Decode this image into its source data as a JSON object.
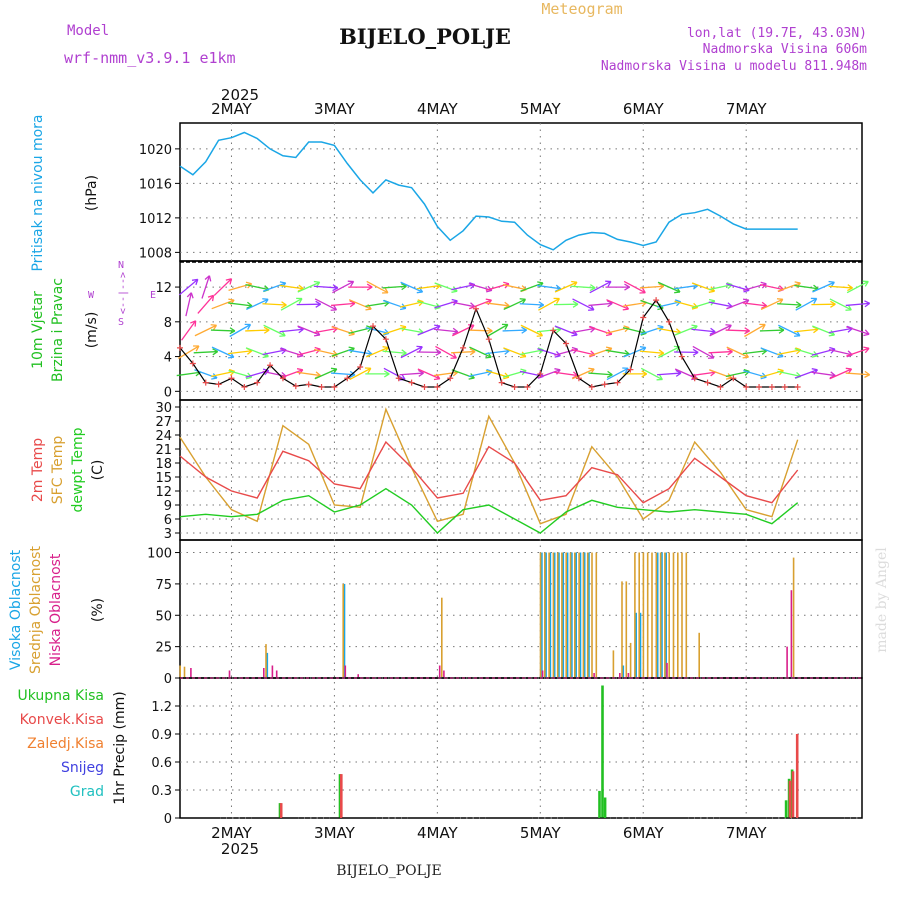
{
  "header": {
    "app_title": "Meteogram",
    "station": "BIJELO_POLJE",
    "model_label": "Model",
    "model_name": "wrf-nmm_v3.9.1  e1km",
    "lonlat": "lon,lat (19.7E, 43.03N)",
    "altitude": "Nadmorska Visina 606m",
    "model_altitude": "Nadmorska Visina u modelu 811.948m",
    "footer_station": "BIJELO_POLJE",
    "credit": "made by Angel"
  },
  "colors": {
    "pressure": "#1aa6e6",
    "wind_title": "#22c022",
    "temp2m": "#e84a4a",
    "sfc_temp": "#d8a030",
    "dewpt": "#22cc22",
    "cloud_high": "#1aa6e6",
    "cloud_mid": "#d8a030",
    "cloud_low": "#d81f8a",
    "wind_dir": "#b040d0",
    "precip_total": "#22c022",
    "precip_conv": "#e84a4a",
    "precip_frozen": "#f08030",
    "snow": "#4040e0",
    "graupel": "#20c0c0",
    "header_purple": "#b040d0",
    "header_gold": "#e8b860"
  },
  "chart_data": [
    {
      "type": "line",
      "panel": "pressure",
      "ylabel_main": "Pritisak na nivou mora",
      "ylabel_unit": "(hPa)",
      "ylim": [
        1007,
        1023
      ],
      "yticks": [
        "1008",
        "1012",
        "1016",
        "1020"
      ],
      "x_top_year": "2025",
      "x_days": [
        "2MAY",
        "3MAY",
        "4MAY",
        "5MAY",
        "6MAY",
        "7MAY"
      ],
      "x_bottom_year": "2025",
      "x_hours": [
        0,
        3,
        6,
        9,
        12,
        15,
        18,
        21,
        24,
        27,
        30,
        33,
        36,
        39,
        42,
        45,
        48,
        51,
        54,
        57,
        60,
        63,
        66,
        69,
        72,
        75,
        78,
        81,
        84,
        87,
        90,
        93,
        96,
        99,
        102,
        105,
        108,
        111,
        114,
        117,
        120,
        123,
        126,
        129,
        132,
        135,
        138,
        141,
        144
      ],
      "values": [
        1018.0,
        1017.0,
        1018.5,
        1021.0,
        1021.3,
        1021.9,
        1021.2,
        1020.0,
        1019.2,
        1019.0,
        1020.8,
        1020.8,
        1020.4,
        1018.3,
        1016.4,
        1014.9,
        1016.4,
        1015.8,
        1015.5,
        1013.6,
        1011.0,
        1009.4,
        1010.5,
        1012.2,
        1012.1,
        1011.6,
        1011.5,
        1010.0,
        1008.9,
        1008.3,
        1009.4,
        1010.0,
        1010.3,
        1010.2,
        1009.5,
        1009.2,
        1008.8,
        1009.2,
        1011.5,
        1012.4,
        1012.6,
        1013.0,
        1012.2,
        1011.3,
        1010.7,
        1010.7,
        1010.7,
        1010.7,
        1010.7
      ],
      "series": [
        {
          "name": "Pritisak na nivou mora",
          "color": "#1aa6e6"
        }
      ]
    },
    {
      "type": "line",
      "panel": "wind",
      "ylabel_main": "10m Vjetar",
      "ylabel_sub": "Brzina i Pravac",
      "ylabel_unit": "(m/s)",
      "ylim": [
        -1,
        15
      ],
      "yticks": [
        "0",
        "4",
        "8",
        "12"
      ],
      "direction_legend": {
        "w": "W",
        "e": "E",
        "s": "S",
        "n": "N",
        "arrow": "<--|-->"
      },
      "x_hours": [
        0,
        3,
        6,
        9,
        12,
        15,
        18,
        21,
        24,
        27,
        30,
        33,
        36,
        39,
        42,
        45,
        48,
        51,
        54,
        57,
        60,
        63,
        66,
        69,
        72,
        75,
        78,
        81,
        84,
        87,
        90,
        93,
        96,
        99,
        102,
        105,
        108,
        111,
        114,
        117,
        120,
        123,
        126,
        129,
        132,
        135,
        138,
        141,
        144
      ],
      "values": [
        5.0,
        3.2,
        1.0,
        0.8,
        1.5,
        0.5,
        1.0,
        3.0,
        1.5,
        0.6,
        0.8,
        0.5,
        0.5,
        1.5,
        2.8,
        7.5,
        6.0,
        1.5,
        1.0,
        0.5,
        0.5,
        1.5,
        5.0,
        9.5,
        6.0,
        1.0,
        0.5,
        0.5,
        2.0,
        7.0,
        5.5,
        1.5,
        0.5,
        0.8,
        1.0,
        2.5,
        8.5,
        10.5,
        8.0,
        4.0,
        1.5,
        1.0,
        0.5,
        1.5,
        0.5,
        0.5,
        0.5,
        0.5,
        0.5
      ],
      "series": [
        {
          "name": "10m Vjetar Brzina i Pravac",
          "color": "#000000"
        }
      ]
    },
    {
      "type": "line",
      "panel": "temperature",
      "ylabel_main": "2m Temp",
      "ylabel_sub": "SFC Temp",
      "ylabel_sub2": "dewpt Temp",
      "ylabel_unit": "(C)",
      "ylim": [
        1.5,
        31.5
      ],
      "yticks": [
        "3",
        "6",
        "9",
        "12",
        "15",
        "18",
        "21",
        "24",
        "27",
        "30"
      ],
      "x_hours": [
        0,
        6,
        12,
        18,
        24,
        30,
        36,
        42,
        48,
        54,
        60,
        66,
        72,
        78,
        84,
        90,
        96,
        102,
        108,
        114,
        120,
        126,
        132,
        138,
        144
      ],
      "series": [
        {
          "name": "2m Temp",
          "color": "#e84a4a",
          "values": [
            19.5,
            15,
            12,
            10.5,
            20.5,
            18.5,
            13.5,
            12.5,
            22.5,
            17,
            10.5,
            11.5,
            21.5,
            18,
            10,
            11,
            17,
            15.5,
            9.5,
            12.5,
            19,
            15,
            11,
            9.5,
            16.5
          ]
        },
        {
          "name": "SFC Temp",
          "color": "#d8a030",
          "values": [
            23.5,
            15,
            8,
            5.5,
            26,
            22,
            9,
            8.5,
            29.5,
            17,
            5.5,
            7,
            28,
            18,
            5,
            7,
            21.5,
            15,
            6,
            10,
            22.5,
            16,
            8,
            6.5,
            23
          ]
        },
        {
          "name": "dewpt Temp",
          "color": "#22cc22",
          "values": [
            6.5,
            7,
            6.5,
            7,
            10,
            11,
            7.5,
            9,
            12.5,
            9,
            3,
            8,
            9,
            6,
            3,
            7.5,
            10,
            8.5,
            8,
            7.5,
            8,
            7.5,
            7,
            5,
            9.5
          ]
        }
      ]
    },
    {
      "type": "bar",
      "panel": "clouds",
      "ylabel_main": "Visoka Oblacnost",
      "ylabel_sub": "Srednja Oblacnost",
      "ylabel_sub2": "Niska Oblacnost",
      "ylabel_unit": "(%)",
      "ylim": [
        0,
        110
      ],
      "yticks": [
        "0",
        "25",
        "50",
        "75",
        "100"
      ],
      "series": [
        {
          "name": "Visoka Oblacnost",
          "color": "#1aa6e6",
          "points": [
            [
              20,
              20
            ],
            [
              38,
              75
            ],
            [
              84,
              100
            ],
            [
              85,
              100
            ],
            [
              86,
              100
            ],
            [
              87,
              100
            ],
            [
              88,
              100
            ],
            [
              89,
              100
            ],
            [
              90,
              100
            ],
            [
              91,
              100
            ],
            [
              92,
              100
            ],
            [
              93,
              100
            ],
            [
              94,
              100
            ],
            [
              95,
              100
            ],
            [
              103,
              10
            ],
            [
              106,
              52
            ],
            [
              107,
              52
            ],
            [
              111,
              100
            ],
            [
              112,
              100
            ],
            [
              113,
              100
            ]
          ]
        },
        {
          "name": "Srednja Oblacnost",
          "color": "#d8a030",
          "points": [
            [
              0,
              10
            ],
            [
              1,
              9
            ],
            [
              20,
              27
            ],
            [
              38,
              75
            ],
            [
              61,
              64
            ],
            [
              84,
              100
            ],
            [
              85,
              100
            ],
            [
              86,
              100
            ],
            [
              87,
              100
            ],
            [
              88,
              100
            ],
            [
              89,
              100
            ],
            [
              90,
              100
            ],
            [
              91,
              100
            ],
            [
              92,
              100
            ],
            [
              93,
              100
            ],
            [
              94,
              100
            ],
            [
              95,
              100
            ],
            [
              96,
              100
            ],
            [
              97,
              100
            ],
            [
              101,
              22
            ],
            [
              103,
              77
            ],
            [
              104,
              77
            ],
            [
              105,
              28
            ],
            [
              106,
              100
            ],
            [
              107,
              100
            ],
            [
              108,
              100
            ],
            [
              109,
              100
            ],
            [
              110,
              100
            ],
            [
              111,
              100
            ],
            [
              112,
              100
            ],
            [
              113,
              100
            ],
            [
              114,
              100
            ],
            [
              115,
              100
            ],
            [
              116,
              100
            ],
            [
              117,
              100
            ],
            [
              118,
              100
            ],
            [
              121,
              36
            ],
            [
              143,
              96
            ]
          ]
        },
        {
          "name": "Niska Oblacnost",
          "color": "#d81f8a",
          "points": [
            [
              2,
              8
            ],
            [
              11,
              6
            ],
            [
              19,
              8
            ],
            [
              21,
              10
            ],
            [
              22,
              6
            ],
            [
              38,
              10
            ],
            [
              41,
              3
            ],
            [
              60,
              10
            ],
            [
              61,
              6
            ],
            [
              84,
              6
            ],
            [
              96,
              4
            ],
            [
              102,
              4
            ],
            [
              104,
              4
            ],
            [
              113,
              12
            ],
            [
              141,
              25
            ],
            [
              142,
              70
            ]
          ]
        }
      ]
    },
    {
      "type": "bar",
      "panel": "precipitation",
      "ylabel_main": "1hr Precip (mm)",
      "ylim": [
        0,
        1.5
      ],
      "yticks": [
        "0",
        "0.3",
        "0.6",
        "0.9",
        "1.2"
      ],
      "legend": [
        "Ukupna Kisa",
        "Konvek.Kisa",
        "Zaledj.Kisa",
        "Snijeg",
        "Grad"
      ],
      "series": [
        {
          "name": "Ukupna Kisa",
          "color": "#22c022",
          "points": [
            [
              23,
              0.16
            ],
            [
              37,
              0.47
            ],
            [
              97.5,
              0.29
            ],
            [
              98.2,
              1.42
            ],
            [
              98.8,
              0.22
            ],
            [
              141,
              0.19
            ],
            [
              141.7,
              0.42
            ],
            [
              142.4,
              0.52
            ]
          ]
        },
        {
          "name": "Konvek.Kisa",
          "color": "#e84a4a",
          "points": [
            [
              23.3,
              0.16
            ],
            [
              37.3,
              0.47
            ],
            [
              141.9,
              0.4
            ],
            [
              142.6,
              0.5
            ],
            [
              143.6,
              0.9
            ]
          ]
        }
      ]
    }
  ]
}
